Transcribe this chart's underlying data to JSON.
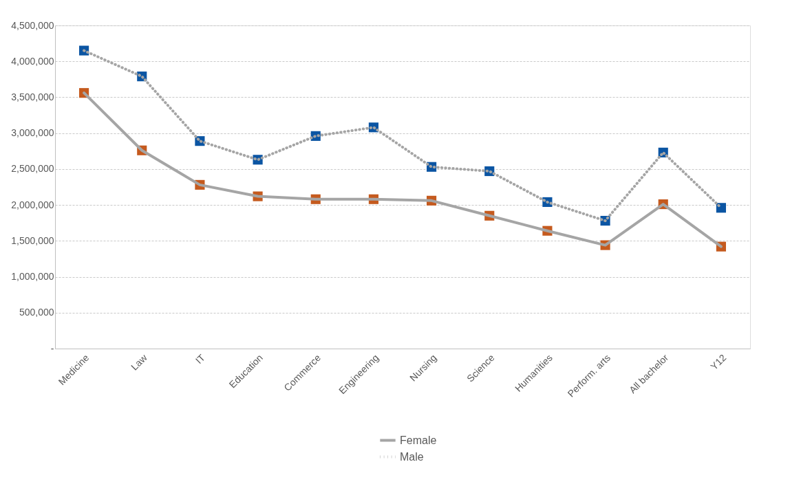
{
  "chart_data": {
    "type": "line",
    "categories": [
      "Medicine",
      "Law",
      "IT",
      "Education",
      "Commerce",
      "Engineering",
      "Nursing",
      "Science",
      "Humanities",
      "Perform. arts",
      "All bachelor",
      "Y12"
    ],
    "series": [
      {
        "name": "Female",
        "color": "#a5a5a5",
        "line_style": "solid",
        "colors": [
          "#c55a1e",
          "#c55a1e",
          "#c55a1e",
          "#c55a1e",
          "#c55a1e",
          "#c55a1e",
          "#c55a1e",
          "#c55a1e",
          "#c55a1e",
          "#c55a1e",
          "#c55a1e",
          "#c55a1e"
        ],
        "values": [
          3560000,
          2760000,
          2280000,
          2120000,
          2080000,
          2080000,
          2060000,
          1850000,
          1640000,
          1440000,
          2010000,
          1420000
        ]
      },
      {
        "name": "Male",
        "color": "#a5a5a5",
        "line_style": "dotted",
        "colors": [
          "#0b55a3",
          "#0b55a3",
          "#0b55a3",
          "#0b55a3",
          "#0b55a3",
          "#0b55a3",
          "#0b55a3",
          "#0b55a3",
          "#0b55a3",
          "#0b55a3",
          "#0b55a3",
          "#0b55a3"
        ],
        "values": [
          4150000,
          3790000,
          2890000,
          2630000,
          2960000,
          3080000,
          2530000,
          2470000,
          2040000,
          1780000,
          2730000,
          1960000
        ]
      }
    ],
    "ylim": [
      0,
      4500000
    ],
    "yticks": [
      {
        "value": 0,
        "label": "-"
      },
      {
        "value": 500000,
        "label": "500,000"
      },
      {
        "value": 1000000,
        "label": "1,000,000"
      },
      {
        "value": 1500000,
        "label": "1,500,000"
      },
      {
        "value": 2000000,
        "label": "2,000,000"
      },
      {
        "value": 2500000,
        "label": "2,500,000"
      },
      {
        "value": 3000000,
        "label": "3,000,000"
      },
      {
        "value": 3500000,
        "label": "3,500,000"
      },
      {
        "value": 4000000,
        "label": "4,000,000"
      },
      {
        "value": 4500000,
        "label": "4,500,000"
      }
    ],
    "grid": "y",
    "legend": "bottom",
    "marker": "square"
  }
}
